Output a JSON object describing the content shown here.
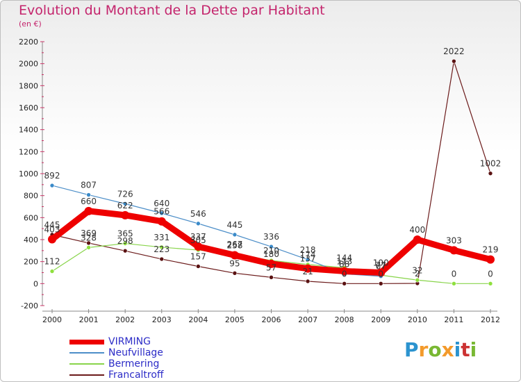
{
  "title": "Evolution du Montant de la Dette par Habitant",
  "subtitle": "(en €)",
  "logo": {
    "letters": [
      "P",
      "r",
      "o",
      "x",
      "i",
      "t",
      "i"
    ],
    "colors": [
      "#2b93cf",
      "#f39a2b",
      "#79b833",
      "#f39a2b",
      "#2b93cf",
      "#cc3333",
      "#79b833"
    ]
  },
  "chart_data": {
    "type": "line",
    "x": [
      "2000",
      "2001",
      "2002",
      "2003",
      "2004",
      "2005",
      "2006",
      "2007",
      "2008",
      "2009",
      "2010",
      "2011",
      "2012"
    ],
    "ylim": [
      -200,
      2200
    ],
    "yticks": [
      "-200",
      "0",
      "200",
      "400",
      "600",
      "800",
      "1000",
      "1200",
      "1400",
      "1600",
      "1800",
      "2000",
      "2200"
    ],
    "grid": false,
    "legend": "bottom-left",
    "series": [
      {
        "name": "VIRMING",
        "color": "#ee0000",
        "values": [
          403,
          660,
          622,
          566,
          337,
          258,
          180,
          137,
          113,
          100,
          400,
          303,
          219
        ],
        "labels": [
          "403",
          "660",
          "622",
          "566",
          "337",
          "258",
          "180",
          "137",
          "113",
          "100",
          "400",
          "303",
          "219"
        ]
      },
      {
        "name": "Neufvillage",
        "color": "#4c8ec8",
        "values": [
          892,
          807,
          726,
          640,
          546,
          445,
          336,
          218,
          88,
          67,
          null,
          null,
          null
        ],
        "labels": [
          "892",
          "807",
          "726",
          "640",
          "546",
          "445",
          "336",
          "218",
          "88",
          "67",
          "",
          "",
          ""
        ]
      },
      {
        "name": "Bermering",
        "color": "#88d44a",
        "values": [
          112,
          328,
          365,
          331,
          305,
          267,
          210,
          174,
          144,
          77,
          32,
          0,
          0
        ],
        "labels": [
          "112",
          "328",
          "365",
          "331",
          "305",
          "267",
          "210",
          "174",
          "144",
          "77",
          "32",
          "0",
          "0"
        ]
      },
      {
        "name": "Francaltroff",
        "color": "#6b1a1a",
        "values": [
          445,
          369,
          298,
          223,
          157,
          95,
          57,
          21,
          0,
          0,
          2,
          2022,
          1002
        ],
        "labels": [
          "445",
          "369",
          "298",
          "223",
          "157",
          "95",
          "57",
          "21",
          "0",
          "0",
          "2",
          "2022",
          "1002"
        ]
      }
    ]
  }
}
